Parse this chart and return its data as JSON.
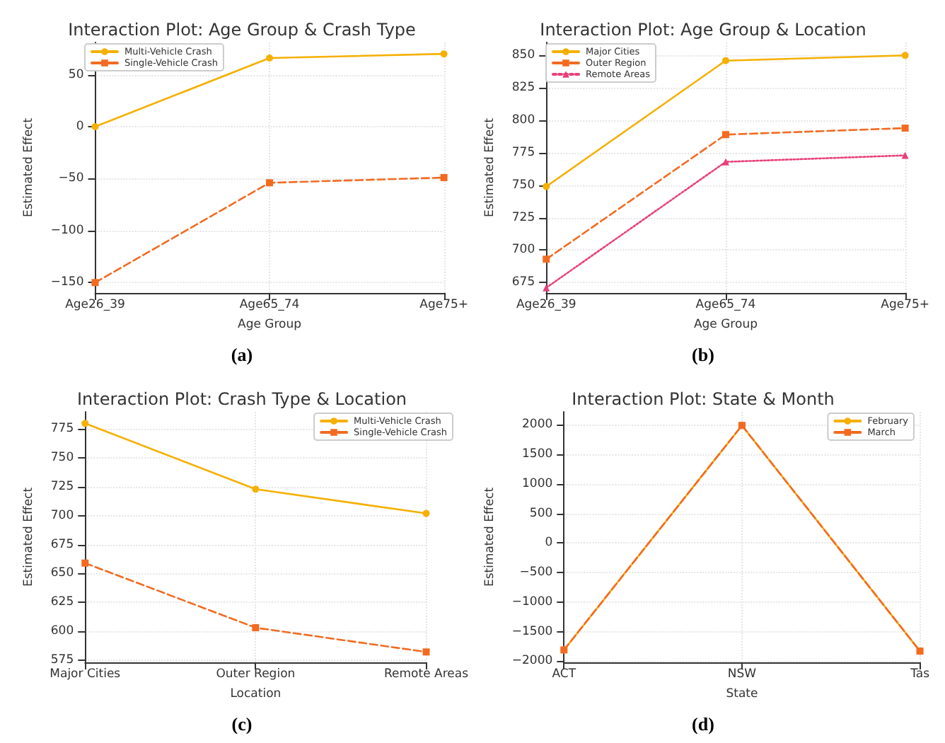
{
  "chart_data": [
    {
      "type": "line",
      "title": "Interaction Plot: Age Group & Crash Type",
      "xlabel": "Age Group",
      "ylabel": "Estimated Effect",
      "categories": [
        "Age26_39",
        "Age65_74",
        "Age75+"
      ],
      "series": [
        {
          "name": "Multi-Vehicle Crash",
          "color": "#f5b000",
          "values": [
            0,
            66,
            70
          ],
          "marker": "circle",
          "line_style": "solid"
        },
        {
          "name": "Single-Vehicle Crash",
          "color": "#f26b21",
          "values": [
            -150,
            -54,
            -49
          ],
          "marker": "square",
          "line_style": "dashed"
        }
      ],
      "ylim": [
        -160,
        81
      ],
      "yticks": [
        -150,
        -100,
        -50,
        0,
        50
      ],
      "grid": true,
      "legend": "top left",
      "annotations": [
        "(a)"
      ]
    },
    {
      "type": "line",
      "title": "Interaction Plot: Age Group & Location",
      "xlabel": "Age Group",
      "ylabel": "Estimated Effect",
      "categories": [
        "Age26_39",
        "Age65_74",
        "Age75+"
      ],
      "series": [
        {
          "name": "Major Cities",
          "color": "#f5b000",
          "values": [
            749,
            846,
            850
          ],
          "marker": "circle",
          "line_style": "solid"
        },
        {
          "name": "Outer Region",
          "color": "#f26b21",
          "values": [
            693,
            789,
            794
          ],
          "marker": "square",
          "line_style": "dashed"
        },
        {
          "name": "Remote Areas",
          "color": "#e8407a",
          "values": [
            671,
            768,
            773
          ],
          "marker": "triangle",
          "line_style": "dotted"
        }
      ],
      "ylim": [
        667,
        860
      ],
      "yticks": [
        675,
        700,
        725,
        750,
        775,
        800,
        825,
        850
      ],
      "grid": true,
      "legend": "top left",
      "annotations": [
        "(b)"
      ]
    },
    {
      "type": "line",
      "title": "Interaction Plot: Crash Type & Location",
      "xlabel": "Location",
      "ylabel": "Estimated Effect",
      "categories": [
        "Major Cities",
        "Outer Region",
        "Remote Areas"
      ],
      "series": [
        {
          "name": "Multi-Vehicle Crash",
          "color": "#f5b000",
          "values": [
            780,
            723,
            702
          ],
          "marker": "circle",
          "line_style": "solid"
        },
        {
          "name": "Single-Vehicle Crash",
          "color": "#f26b21",
          "values": [
            659,
            603,
            582
          ],
          "marker": "square",
          "line_style": "dashed"
        }
      ],
      "ylim": [
        573,
        790
      ],
      "yticks": [
        575,
        600,
        625,
        650,
        675,
        700,
        725,
        750,
        775
      ],
      "grid": true,
      "legend": "top right",
      "annotations": [
        "(c)"
      ]
    },
    {
      "type": "line",
      "title": "Interaction Plot: State & Month",
      "xlabel": "State",
      "ylabel": "Estimated Effect",
      "categories": [
        "ACT",
        "NSW",
        "Tas"
      ],
      "series": [
        {
          "name": "February",
          "color": "#f5b000",
          "values": [
            -1810,
            1990,
            -1830
          ],
          "marker": "circle",
          "line_style": "solid"
        },
        {
          "name": "March",
          "color": "#f26b21",
          "values": [
            -1810,
            1990,
            -1830
          ],
          "marker": "square",
          "line_style": "dashed"
        }
      ],
      "ylim": [
        -2020,
        2220
      ],
      "yticks": [
        -2000,
        -1500,
        -1000,
        -500,
        0,
        500,
        1000,
        1500,
        2000
      ],
      "grid": true,
      "legend": "top right",
      "annotations": [
        "(d)"
      ]
    }
  ]
}
